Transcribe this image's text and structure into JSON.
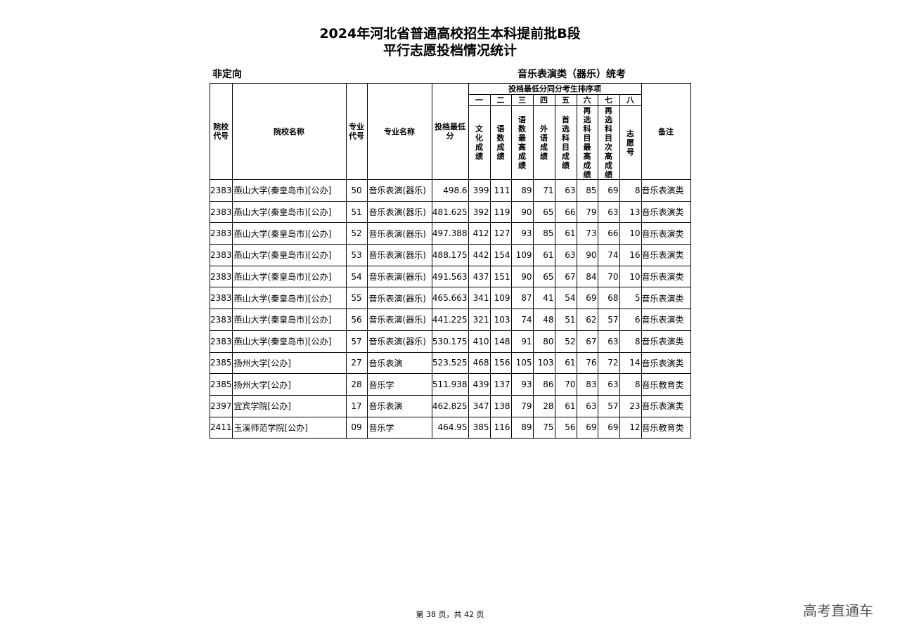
{
  "title_line1": "2024年河北省普通高校招生本科提前批B段",
  "title_line2": "平行志愿投档情况统计",
  "subtitle_left": "非定向",
  "subtitle_right": "音乐表演类（器乐）统考",
  "headers": {
    "school_code": "院校代号",
    "school_name": "院校名称",
    "major_code": "专业代号",
    "major_name": "专业名称",
    "min_score": "投档最低分",
    "tiebreak_group": "投档最低分同分考生排序项",
    "order": [
      "一",
      "二",
      "三",
      "四",
      "五",
      "六",
      "七",
      "八"
    ],
    "items": [
      "文化成绩",
      "语数成绩",
      "语数最高成绩",
      "外语成绩",
      "首选科目成绩",
      "再选科目最高成绩",
      "再选科目次高成绩",
      "志愿号"
    ],
    "remark": "备注"
  },
  "rows": [
    [
      "2383",
      "燕山大学(秦皇岛市)[公办]",
      "50",
      "音乐表演(器乐)",
      "498.6",
      "399",
      "111",
      "89",
      "71",
      "63",
      "85",
      "69",
      "8",
      "音乐表演类"
    ],
    [
      "2383",
      "燕山大学(秦皇岛市)[公办]",
      "51",
      "音乐表演(器乐)",
      "481.625",
      "392",
      "119",
      "90",
      "65",
      "66",
      "79",
      "63",
      "13",
      "音乐表演类"
    ],
    [
      "2383",
      "燕山大学(秦皇岛市)[公办]",
      "52",
      "音乐表演(器乐)",
      "497.388",
      "412",
      "127",
      "93",
      "85",
      "61",
      "73",
      "66",
      "10",
      "音乐表演类"
    ],
    [
      "2383",
      "燕山大学(秦皇岛市)[公办]",
      "53",
      "音乐表演(器乐)",
      "488.175",
      "442",
      "154",
      "109",
      "61",
      "63",
      "90",
      "74",
      "16",
      "音乐表演类"
    ],
    [
      "2383",
      "燕山大学(秦皇岛市)[公办]",
      "54",
      "音乐表演(器乐)",
      "491.563",
      "437",
      "151",
      "90",
      "65",
      "67",
      "84",
      "70",
      "10",
      "音乐表演类"
    ],
    [
      "2383",
      "燕山大学(秦皇岛市)[公办]",
      "55",
      "音乐表演(器乐)",
      "465.663",
      "341",
      "109",
      "87",
      "41",
      "54",
      "69",
      "68",
      "5",
      "音乐表演类"
    ],
    [
      "2383",
      "燕山大学(秦皇岛市)[公办]",
      "56",
      "音乐表演(器乐)",
      "441.225",
      "321",
      "103",
      "74",
      "48",
      "51",
      "62",
      "57",
      "6",
      "音乐表演类"
    ],
    [
      "2383",
      "燕山大学(秦皇岛市)[公办]",
      "57",
      "音乐表演(器乐)",
      "530.175",
      "410",
      "148",
      "91",
      "80",
      "52",
      "67",
      "63",
      "8",
      "音乐表演类"
    ],
    [
      "2385",
      "扬州大学[公办]",
      "27",
      "音乐表演",
      "523.525",
      "468",
      "156",
      "105",
      "103",
      "61",
      "76",
      "72",
      "14",
      "音乐表演类"
    ],
    [
      "2385",
      "扬州大学[公办]",
      "28",
      "音乐学",
      "511.938",
      "439",
      "137",
      "93",
      "86",
      "70",
      "83",
      "63",
      "8",
      "音乐教育类"
    ],
    [
      "2397",
      "宜宾学院[公办]",
      "17",
      "音乐表演",
      "462.825",
      "347",
      "138",
      "79",
      "28",
      "61",
      "63",
      "57",
      "23",
      "音乐表演类"
    ],
    [
      "2411",
      "玉溪师范学院[公办]",
      "09",
      "音乐学",
      "464.95",
      "385",
      "116",
      "89",
      "75",
      "56",
      "69",
      "69",
      "12",
      "音乐教育类"
    ]
  ],
  "footer": "第 38 页，共 42 页",
  "watermark": "高考直通车"
}
